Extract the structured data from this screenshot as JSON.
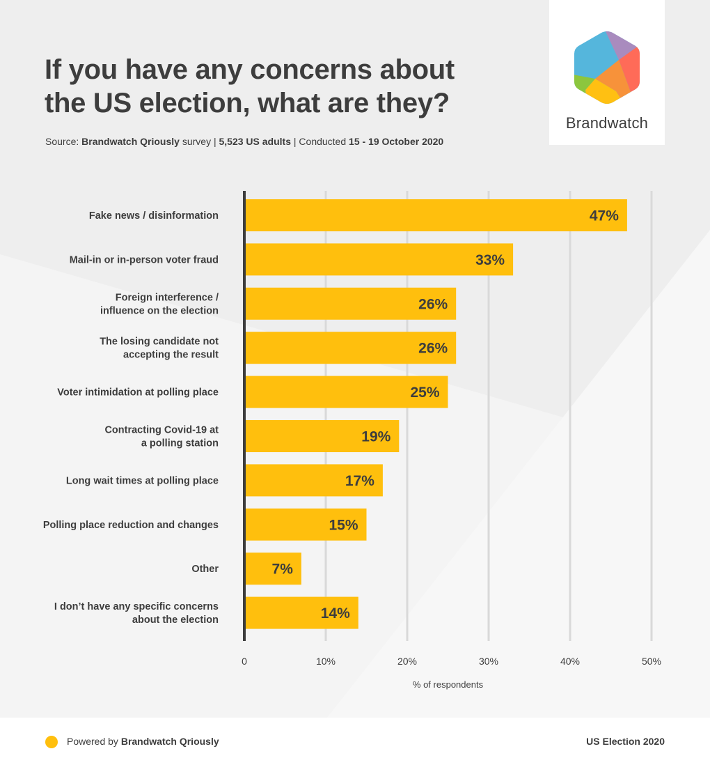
{
  "header": {
    "title": "If you have any concerns about the US election, what are they?",
    "source": {
      "prefix": "Source: ",
      "brand": "Brandwatch Qriously",
      "after_brand": " survey | ",
      "sample": "5,523 US adults",
      "after_sample": " | Conducted ",
      "dates": "15 - 19 October 2020"
    }
  },
  "logo": {
    "text": "Brandwatch",
    "colors": {
      "blue": "#55b6dc",
      "purple": "#a98bbe",
      "red": "#ff6b58",
      "orange": "#f7923a",
      "yellow": "#ffc012",
      "green": "#8cc63e"
    }
  },
  "colors": {
    "bar": "#ffbf0d",
    "axis": "#3d3d3d",
    "grid": "#d9d9d9",
    "text": "#3d3d3d"
  },
  "chart_data": {
    "type": "bar",
    "orientation": "horizontal",
    "title": "If you have any concerns about the US election, what are they?",
    "xlabel": "% of respondents",
    "ylabel": "",
    "xlim": [
      0,
      50
    ],
    "xticks": [
      0,
      10,
      20,
      30,
      40,
      50
    ],
    "xtick_labels": [
      "0",
      "10%",
      "20%",
      "30%",
      "40%",
      "50%"
    ],
    "grid": true,
    "categories": [
      [
        "Fake news / disinformation"
      ],
      [
        "Mail-in or in-person voter fraud"
      ],
      [
        "Foreign interference /",
        "influence on the election"
      ],
      [
        "The losing candidate not",
        "accepting the result"
      ],
      [
        "Voter intimidation at polling place"
      ],
      [
        "Contracting Covid-19 at",
        "a polling station"
      ],
      [
        "Long wait times at polling place"
      ],
      [
        "Polling place reduction and changes"
      ],
      [
        "Other"
      ],
      [
        "I don’t have any specific concerns",
        "about the election"
      ]
    ],
    "values": [
      47,
      33,
      26,
      26,
      25,
      19,
      17,
      15,
      7,
      14
    ],
    "value_labels": [
      "47%",
      "33%",
      "26%",
      "26%",
      "25%",
      "19%",
      "17%",
      "15%",
      "7%",
      "14%"
    ]
  },
  "footer": {
    "powered_prefix": "Powered by ",
    "powered_brand": "Brandwatch Qriously",
    "right_text": "US Election 2020"
  }
}
